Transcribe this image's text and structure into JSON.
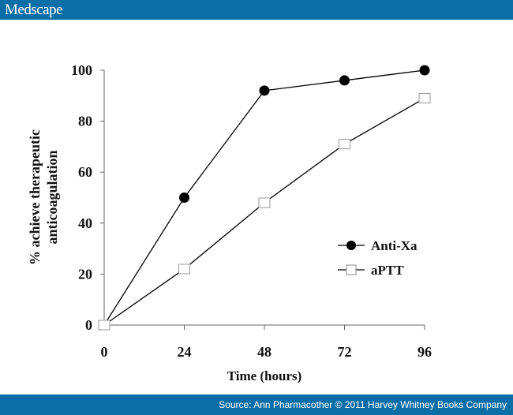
{
  "header": {
    "logo": "Medscape"
  },
  "footer": {
    "source": "Source: Ann Pharmacother © 2011 Harvey Whitney Books Company"
  },
  "chart_data": {
    "type": "line",
    "title": "",
    "xlabel": "Time (hours)",
    "ylabel": [
      "% achieve therapeutic",
      "anticoagulation"
    ],
    "x": [
      0,
      24,
      48,
      72,
      96
    ],
    "xlim": [
      0,
      96
    ],
    "ylim": [
      0,
      100
    ],
    "xticks": [
      "0",
      "24",
      "48",
      "72",
      "96"
    ],
    "yticks": [
      "0",
      "20",
      "40",
      "60",
      "80",
      "100"
    ],
    "grid": false,
    "legend": "right",
    "series": [
      {
        "name": "Anti-Xa",
        "marker": "filled-circle",
        "values": [
          0,
          50,
          92,
          96,
          100
        ]
      },
      {
        "name": "aPTT",
        "marker": "open-square",
        "values": [
          0,
          22,
          48,
          71,
          89
        ]
      }
    ]
  }
}
